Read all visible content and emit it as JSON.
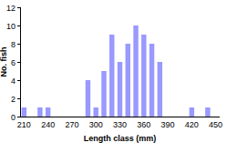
{
  "chart_data": {
    "type": "bar",
    "x_label": "Length class (mm)",
    "y_label": "No. fish",
    "categories": [
      "210",
      null,
      null,
      "240",
      null,
      null,
      "270",
      null,
      null,
      "300",
      null,
      null,
      "330",
      null,
      null,
      "360",
      null,
      null,
      "390",
      null,
      null,
      "420",
      null,
      null,
      "450"
    ],
    "values": [
      1,
      0,
      1,
      1,
      0,
      0,
      0,
      0,
      4,
      1,
      5,
      9,
      6,
      8,
      10,
      9,
      8,
      6,
      0,
      0,
      0,
      1,
      0,
      1,
      0
    ],
    "color": "#9999ff",
    "ylim": [
      0,
      12
    ],
    "yticks": [
      0,
      2,
      4,
      6,
      8,
      10,
      12
    ],
    "grid": false
  }
}
